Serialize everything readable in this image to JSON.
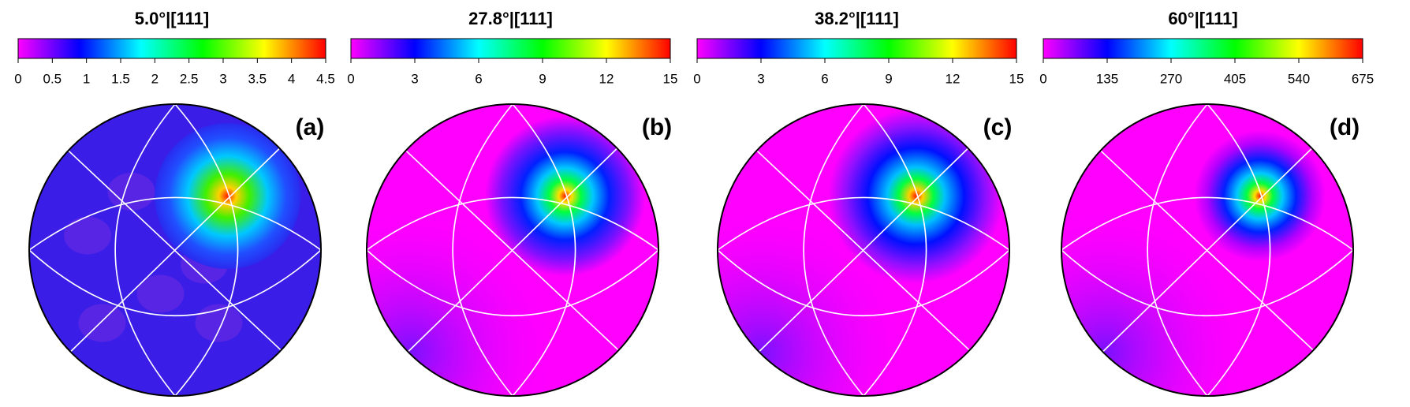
{
  "chart_data": [
    {
      "type": "pole-figure",
      "title": "5.0°|[111]",
      "panel_label": "(a)",
      "clim": [
        0,
        4.5
      ],
      "cticks": [
        0,
        0.5,
        1,
        1.5,
        2,
        2.5,
        3,
        3.5,
        4,
        4.5
      ],
      "colormap": [
        "#ff00ff",
        "#0000ff",
        "#00ffff",
        "#00ff00",
        "#ffff00",
        "#ff0000"
      ]
    },
    {
      "type": "pole-figure",
      "title": "27.8°|[111]",
      "panel_label": "(b)",
      "clim": [
        0,
        15
      ],
      "cticks": [
        0,
        3,
        6,
        9,
        12,
        15
      ],
      "colormap": [
        "#ff00ff",
        "#0000ff",
        "#00ffff",
        "#00ff00",
        "#ffff00",
        "#ff0000"
      ]
    },
    {
      "type": "pole-figure",
      "title": "38.2°|[111]",
      "panel_label": "(c)",
      "clim": [
        0,
        15
      ],
      "cticks": [
        0,
        3,
        6,
        9,
        12,
        15
      ],
      "colormap": [
        "#ff00ff",
        "#0000ff",
        "#00ffff",
        "#00ff00",
        "#ffff00",
        "#ff0000"
      ]
    },
    {
      "type": "pole-figure",
      "title": "60°|[111]",
      "panel_label": "(d)",
      "clim": [
        0,
        675
      ],
      "cticks": [
        0,
        135,
        270,
        405,
        540,
        675
      ],
      "colormap": [
        "#ff00ff",
        "#0000ff",
        "#00ffff",
        "#00ff00",
        "#ffff00",
        "#ff0000"
      ]
    }
  ]
}
